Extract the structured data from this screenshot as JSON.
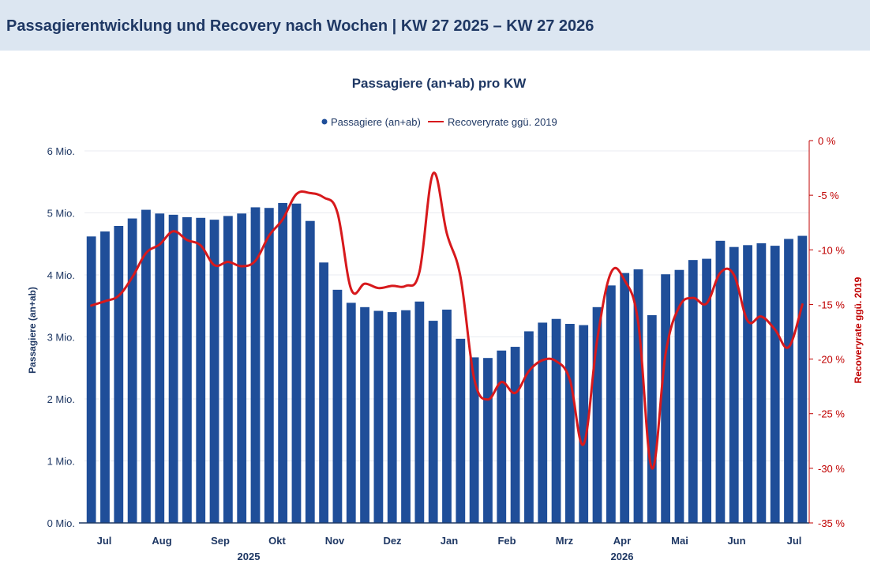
{
  "header": {
    "title": "Passagierentwicklung und Recovery nach Wochen | KW 27 2025 – KW 27 2026"
  },
  "chart_data": {
    "type": "bar",
    "title": "Passagiere (an+ab) pro KW",
    "legend": [
      "Passagiere (an+ab)",
      "Recoveryrate ggü. 2019"
    ],
    "legend_position": "top-center",
    "ylabel": "Passagiere (an+ab)",
    "y2label": "Recoveryrate ggü. 2019",
    "ylim": [
      0,
      6
    ],
    "y2lim": [
      -35,
      0
    ],
    "yticks": [
      "0 Mio.",
      "1 Mio.",
      "2 Mio.",
      "3 Mio.",
      "4 Mio.",
      "5 Mio.",
      "6 Mio."
    ],
    "y2ticks": [
      "0 %",
      "-5 %",
      "-10 %",
      "-15 %",
      "-20 %",
      "-25 %",
      "-30 %",
      "-35 %"
    ],
    "months": [
      "Jul",
      "Aug",
      "Sep",
      "Okt",
      "Nov",
      "Dez",
      "Jan",
      "Feb",
      "Mrz",
      "Apr",
      "Mai",
      "Jun",
      "Jul"
    ],
    "years": [
      "2025",
      "2026"
    ],
    "grid": true,
    "series": [
      {
        "name": "Passagiere (an+ab)",
        "type": "bar",
        "color": "#1f4e99",
        "values": [
          4.62,
          4.7,
          4.79,
          4.91,
          5.05,
          4.99,
          4.97,
          4.93,
          4.92,
          4.89,
          4.95,
          4.99,
          5.09,
          5.08,
          5.16,
          5.15,
          4.87,
          4.2,
          3.76,
          3.55,
          3.48,
          3.42,
          3.4,
          3.43,
          3.57,
          3.26,
          3.44,
          2.97,
          2.67,
          2.66,
          2.78,
          2.84,
          3.09,
          3.23,
          3.29,
          3.21,
          3.19,
          3.48,
          3.83,
          4.03,
          4.09,
          3.35,
          4.01,
          4.08,
          4.24,
          4.26,
          4.55,
          4.45,
          4.48,
          4.51,
          4.47,
          4.58,
          4.63
        ]
      },
      {
        "name": "Recoveryrate ggü. 2019",
        "type": "line",
        "color": "#d7191c",
        "values": [
          -15.1,
          -14.7,
          -14.2,
          -12.5,
          -10.3,
          -9.5,
          -8.3,
          -9.1,
          -9.6,
          -11.4,
          -11.1,
          -11.5,
          -11.0,
          -8.7,
          -7.2,
          -4.9,
          -4.8,
          -5.2,
          -6.6,
          -13.6,
          -13.1,
          -13.5,
          -13.3,
          -13.3,
          -12.0,
          -3.0,
          -8.5,
          -12.5,
          -21.8,
          -23.7,
          -22.1,
          -23.1,
          -21.1,
          -20.1,
          -20.2,
          -21.9,
          -27.8,
          -18.2,
          -12.1,
          -12.8,
          -16.7,
          -30.0,
          -19.5,
          -15.2,
          -14.4,
          -14.9,
          -12.1,
          -12.3,
          -16.5,
          -16.1,
          -17.3,
          -18.9,
          -15.0
        ]
      }
    ]
  }
}
